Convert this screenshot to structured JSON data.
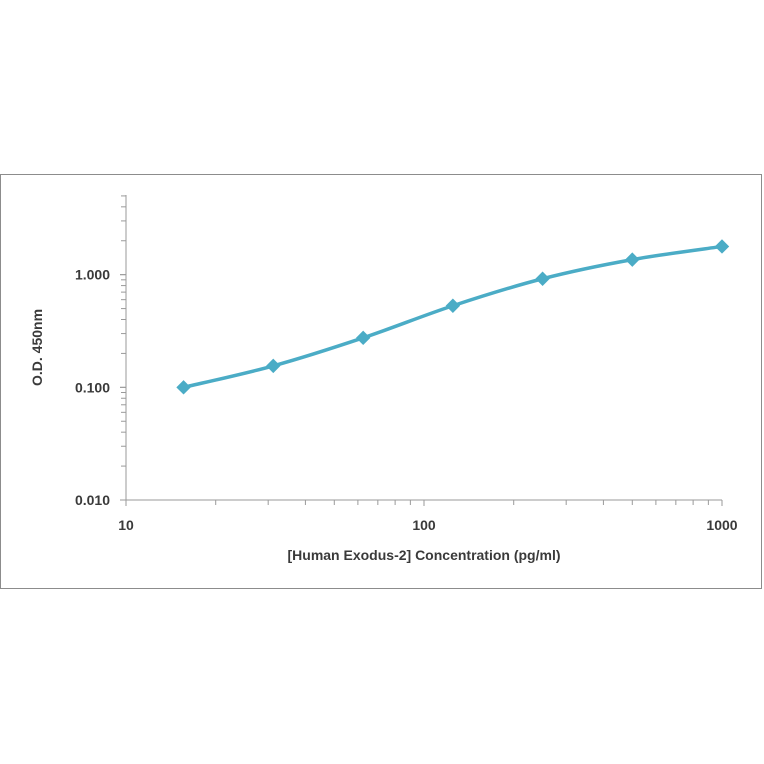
{
  "chart_data": {
    "type": "line",
    "title": "",
    "xlabel": "[Human Exodus-2]  Concentration (pg/ml)",
    "ylabel": "O.D. 450nm",
    "x_scale": "log",
    "y_scale": "log",
    "xlim": [
      10,
      1000
    ],
    "ylim": [
      0.01,
      10
    ],
    "x_ticks": [
      "10",
      "100",
      "1000"
    ],
    "y_ticks": [
      "0.010",
      "0.100",
      "1.000"
    ],
    "grid": false,
    "legend": "none",
    "marker": "diamond",
    "color": "#4bacc6",
    "series": [
      {
        "x": [
          15.6,
          31.2,
          62.5,
          125,
          250,
          500,
          1000
        ],
        "values": [
          0.1,
          0.155,
          0.275,
          0.53,
          0.92,
          1.36,
          1.78
        ]
      }
    ]
  }
}
